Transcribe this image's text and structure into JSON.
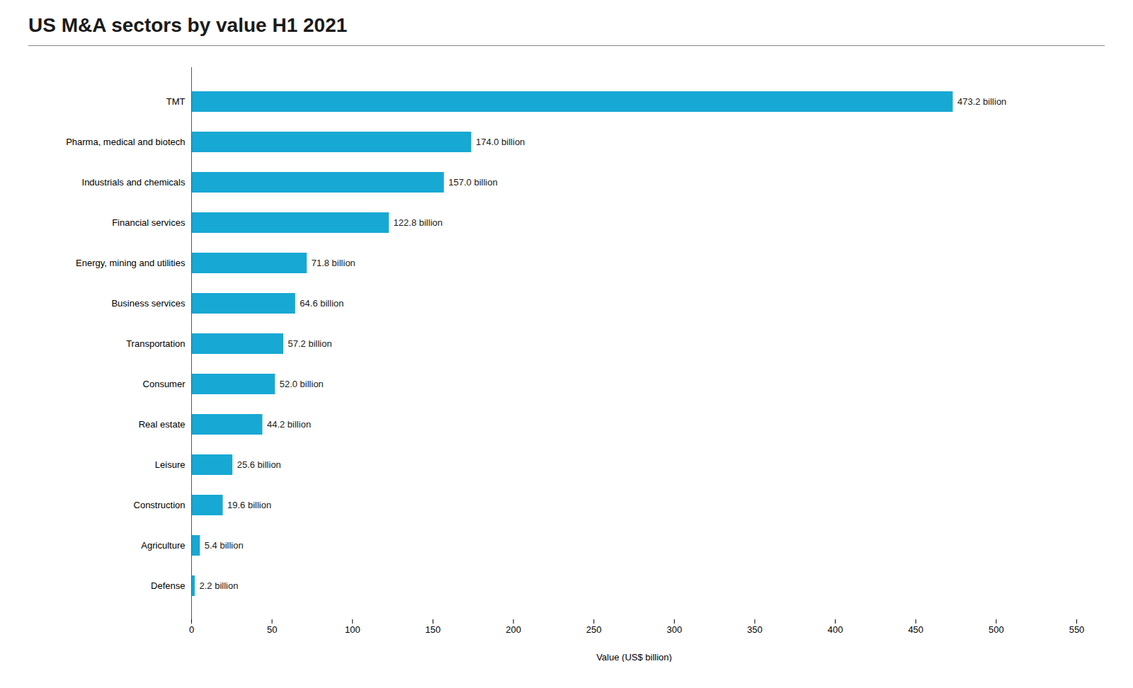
{
  "chart_data": {
    "type": "bar",
    "orientation": "horizontal",
    "title": "US M&A sectors by value H1 2021",
    "categories": [
      "TMT",
      "Pharma, medical and biotech",
      "Industrials and chemicals",
      "Financial services",
      "Energy, mining and utilities",
      "Business services",
      "Transportation",
      "Consumer",
      "Real estate",
      "Leisure",
      "Construction",
      "Agriculture",
      "Defense"
    ],
    "values": [
      473.2,
      174.0,
      157.0,
      122.8,
      71.8,
      64.6,
      57.2,
      52.0,
      44.2,
      25.6,
      19.6,
      5.4,
      2.2
    ],
    "value_labels": [
      "473.2 billion",
      "174.0 billion",
      "157.0 billion",
      "122.8 billion",
      "71.8 billion",
      "64.6 billion",
      "57.2 billion",
      "52.0 billion",
      "44.2 billion",
      "25.6 billion",
      "19.6 billion",
      "5.4 billion",
      "2.2 billion"
    ],
    "data_labels": true,
    "color": "#17a8d4",
    "xlabel": "Value (US$ billion)",
    "xlim": [
      0,
      550
    ],
    "xticks": [
      0,
      50,
      100,
      150,
      200,
      250,
      300,
      350,
      400,
      450,
      500,
      550
    ],
    "grid": false
  }
}
